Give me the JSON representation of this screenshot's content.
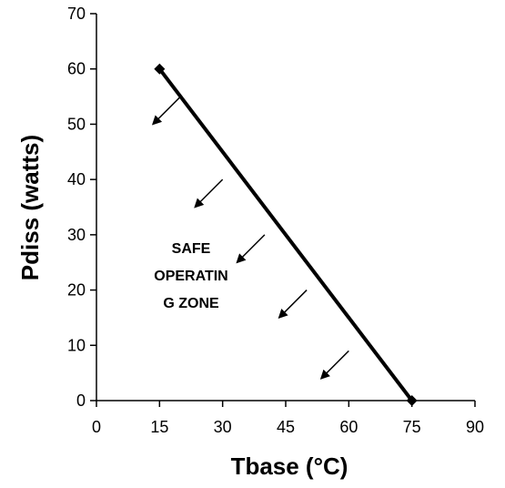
{
  "chart_data": {
    "type": "line",
    "title": "",
    "xlabel": "Tbase (°C)",
    "ylabel": "Pdiss (watts)",
    "xlim": [
      0,
      90
    ],
    "ylim": [
      0,
      70
    ],
    "xticks": [
      0,
      15,
      30,
      45,
      60,
      75,
      90
    ],
    "yticks": [
      0,
      10,
      20,
      30,
      40,
      50,
      60,
      70
    ],
    "grid": false,
    "series": [
      {
        "x": [
          15,
          75
        ],
        "y": [
          60,
          0
        ],
        "color": "#000000",
        "marker": "diamond"
      }
    ],
    "annotations": {
      "safe_zone_lines": [
        "SAFE",
        "OPERATIN",
        "G ZONE"
      ],
      "arrow_anchor_points": [
        {
          "x": 20,
          "y": 55
        },
        {
          "x": 30,
          "y": 40
        },
        {
          "x": 40,
          "y": 30
        },
        {
          "x": 50,
          "y": 20
        },
        {
          "x": 60,
          "y": 9
        }
      ]
    }
  }
}
